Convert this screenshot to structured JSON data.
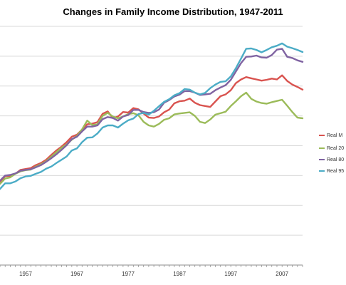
{
  "chart_data": {
    "type": "line",
    "title": "Changes in Family Income Distribution, 1947-2011",
    "x_tick_labels": [
      "1957",
      "1967",
      "1977",
      "1987",
      "1997",
      "2007"
    ],
    "xlim": [
      1952,
      2011
    ],
    "ylim": [
      0,
      8
    ],
    "grid": true,
    "legend_placement": "right",
    "x": [
      1952,
      1953,
      1954,
      1955,
      1956,
      1957,
      1958,
      1959,
      1960,
      1961,
      1962,
      1963,
      1964,
      1965,
      1966,
      1967,
      1968,
      1969,
      1970,
      1971,
      1972,
      1973,
      1974,
      1975,
      1976,
      1977,
      1978,
      1979,
      1980,
      1981,
      1982,
      1983,
      1984,
      1985,
      1986,
      1987,
      1988,
      1989,
      1990,
      1991,
      1992,
      1993,
      1994,
      1995,
      1996,
      1997,
      1998,
      1999,
      2000,
      2001,
      2002,
      2003,
      2004,
      2005,
      2006,
      2007,
      2008,
      2009,
      2010,
      2011
    ],
    "series": [
      {
        "name": "Real M",
        "color": "#d9534f",
        "values": [
          2.8,
          2.98,
          2.99,
          3.06,
          3.19,
          3.22,
          3.25,
          3.35,
          3.42,
          3.53,
          3.69,
          3.84,
          3.97,
          4.12,
          4.3,
          4.37,
          4.54,
          4.72,
          4.74,
          4.79,
          5.07,
          5.15,
          4.93,
          4.98,
          5.13,
          5.11,
          5.26,
          5.22,
          5.08,
          4.94,
          4.93,
          4.98,
          5.12,
          5.21,
          5.42,
          5.49,
          5.51,
          5.58,
          5.44,
          5.36,
          5.33,
          5.3,
          5.48,
          5.66,
          5.72,
          5.86,
          6.1,
          6.22,
          6.3,
          6.26,
          6.22,
          6.18,
          6.21,
          6.25,
          6.22,
          6.36,
          6.17,
          6.05,
          5.97,
          5.88
        ]
      },
      {
        "name": "Real 20",
        "color": "#9bbb59",
        "values": [
          2.72,
          2.9,
          2.94,
          3.06,
          3.14,
          3.18,
          3.2,
          3.3,
          3.38,
          3.48,
          3.63,
          3.78,
          3.93,
          4.04,
          4.2,
          4.33,
          4.55,
          4.84,
          4.69,
          4.72,
          5.0,
          5.1,
          4.98,
          4.92,
          4.98,
          5.06,
          5.09,
          5.02,
          4.8,
          4.68,
          4.64,
          4.73,
          4.87,
          4.92,
          5.05,
          5.08,
          5.1,
          5.12,
          5.0,
          4.8,
          4.76,
          4.88,
          5.04,
          5.09,
          5.14,
          5.33,
          5.49,
          5.66,
          5.78,
          5.57,
          5.48,
          5.43,
          5.41,
          5.46,
          5.5,
          5.54,
          5.34,
          5.13,
          4.94,
          4.92
        ]
      },
      {
        "name": "Real 80",
        "color": "#8064a2",
        "values": [
          2.83,
          3.0,
          3.02,
          3.07,
          3.16,
          3.19,
          3.21,
          3.28,
          3.35,
          3.46,
          3.58,
          3.71,
          3.86,
          4.02,
          4.22,
          4.3,
          4.48,
          4.64,
          4.64,
          4.68,
          4.89,
          4.96,
          4.93,
          4.84,
          4.98,
          5.03,
          5.2,
          5.2,
          5.13,
          5.1,
          5.12,
          5.21,
          5.44,
          5.53,
          5.65,
          5.71,
          5.83,
          5.83,
          5.78,
          5.7,
          5.72,
          5.74,
          5.86,
          5.95,
          6.03,
          6.21,
          6.49,
          6.77,
          6.98,
          6.99,
          7.02,
          6.96,
          6.95,
          7.04,
          7.22,
          7.25,
          6.98,
          6.94,
          6.86,
          6.81
        ]
      },
      {
        "name": "Real 95",
        "color": "#4bacc6",
        "values": [
          2.55,
          2.74,
          2.74,
          2.8,
          2.91,
          2.97,
          2.99,
          3.06,
          3.12,
          3.23,
          3.3,
          3.42,
          3.53,
          3.64,
          3.84,
          3.91,
          4.12,
          4.27,
          4.28,
          4.41,
          4.61,
          4.68,
          4.68,
          4.61,
          4.74,
          4.85,
          4.91,
          5.06,
          5.1,
          5.04,
          5.17,
          5.32,
          5.47,
          5.56,
          5.69,
          5.76,
          5.9,
          5.88,
          5.78,
          5.72,
          5.77,
          5.93,
          6.05,
          6.14,
          6.16,
          6.32,
          6.6,
          6.92,
          7.25,
          7.26,
          7.21,
          7.13,
          7.21,
          7.3,
          7.35,
          7.43,
          7.32,
          7.27,
          7.21,
          7.14
        ]
      }
    ]
  }
}
